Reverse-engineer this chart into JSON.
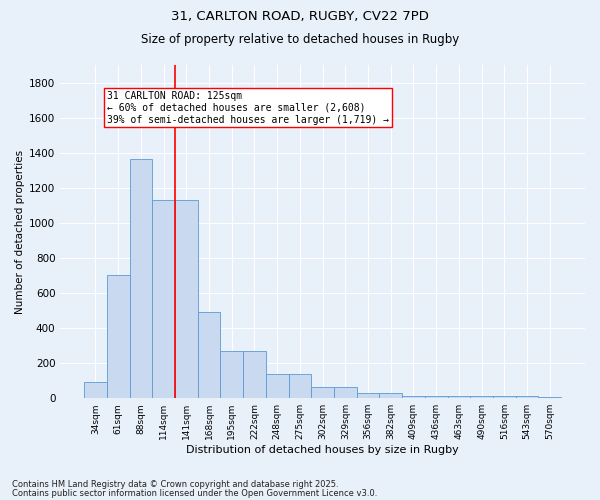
{
  "title1": "31, CARLTON ROAD, RUGBY, CV22 7PD",
  "title2": "Size of property relative to detached houses in Rugby",
  "xlabel": "Distribution of detached houses by size in Rugby",
  "ylabel": "Number of detached properties",
  "categories": [
    "34sqm",
    "61sqm",
    "88sqm",
    "114sqm",
    "141sqm",
    "168sqm",
    "195sqm",
    "222sqm",
    "248sqm",
    "275sqm",
    "302sqm",
    "329sqm",
    "356sqm",
    "382sqm",
    "409sqm",
    "436sqm",
    "463sqm",
    "490sqm",
    "516sqm",
    "543sqm",
    "570sqm"
  ],
  "values": [
    95,
    700,
    1365,
    1130,
    1130,
    490,
    270,
    270,
    140,
    140,
    65,
    65,
    30,
    30,
    10,
    10,
    10,
    10,
    15,
    10,
    5
  ],
  "bar_color": "#c9d9f0",
  "bar_edge_color": "#5b9bd5",
  "vline_color": "red",
  "vline_pos": 3.5,
  "annotation_text": "31 CARLTON ROAD: 125sqm\n← 60% of detached houses are smaller (2,608)\n39% of semi-detached houses are larger (1,719) →",
  "annotation_box_color": "white",
  "annotation_box_edge": "red",
  "ylim": [
    0,
    1900
  ],
  "yticks": [
    0,
    200,
    400,
    600,
    800,
    1000,
    1200,
    1400,
    1600,
    1800
  ],
  "footnote1": "Contains HM Land Registry data © Crown copyright and database right 2025.",
  "footnote2": "Contains public sector information licensed under the Open Government Licence v3.0.",
  "bg_color": "#e8f0fa",
  "plot_bg_color": "#e8f0fa",
  "grid_color": "#ffffff",
  "title1_fontsize": 9.5,
  "title2_fontsize": 8.5,
  "ylabel_fontsize": 7.5,
  "xlabel_fontsize": 8,
  "xtick_fontsize": 6.5,
  "ytick_fontsize": 7.5,
  "annot_fontsize": 7,
  "footnote_fontsize": 6
}
